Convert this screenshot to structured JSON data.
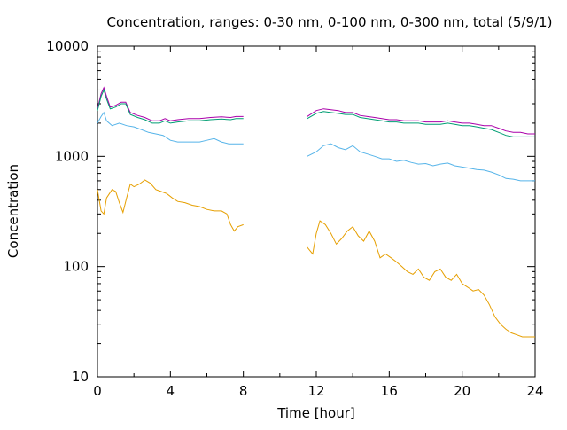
{
  "chart_data": {
    "type": "line",
    "title": "Concentration, ranges: 0-30 nm, 0-100 nm, 0-300 nm, total (5/9/1)",
    "xlabel": "Time [hour]",
    "ylabel": "Concentration",
    "xlim": [
      0,
      24
    ],
    "ylim": [
      10,
      10000
    ],
    "y_scale": "log",
    "grid": false,
    "legend": "none",
    "x_ticks": [
      "0",
      "4",
      "8",
      "12",
      "16",
      "20",
      "24"
    ],
    "x_tick_values": [
      0,
      4,
      8,
      12,
      16,
      20,
      24
    ],
    "y_ticks": [
      "10",
      "100",
      "1000",
      "10000"
    ],
    "y_tick_values": [
      10,
      100,
      1000,
      10000
    ],
    "series": [
      {
        "color": "#aa00aa",
        "segments": [
          [
            [
              0,
              2700
            ],
            [
              0.2,
              3700
            ],
            [
              0.35,
              4200
            ],
            [
              0.5,
              3500
            ],
            [
              0.7,
              2800
            ],
            [
              1.0,
              2900
            ],
            [
              1.3,
              3100
            ],
            [
              1.55,
              3100
            ],
            [
              1.8,
              2500
            ],
            [
              2.2,
              2350
            ],
            [
              2.6,
              2250
            ],
            [
              3.0,
              2100
            ],
            [
              3.4,
              2100
            ],
            [
              3.7,
              2200
            ],
            [
              4.0,
              2100
            ],
            [
              4.4,
              2150
            ],
            [
              5.0,
              2200
            ],
            [
              5.6,
              2200
            ],
            [
              6.2,
              2250
            ],
            [
              6.8,
              2280
            ],
            [
              7.3,
              2250
            ],
            [
              7.6,
              2300
            ],
            [
              8.0,
              2300
            ]
          ],
          [
            [
              11.5,
              2300
            ],
            [
              12.0,
              2600
            ],
            [
              12.4,
              2700
            ],
            [
              12.8,
              2650
            ],
            [
              13.2,
              2600
            ],
            [
              13.6,
              2500
            ],
            [
              14.0,
              2500
            ],
            [
              14.4,
              2350
            ],
            [
              14.8,
              2300
            ],
            [
              15.2,
              2250
            ],
            [
              15.6,
              2200
            ],
            [
              16.0,
              2150
            ],
            [
              16.4,
              2150
            ],
            [
              16.8,
              2100
            ],
            [
              17.2,
              2100
            ],
            [
              17.6,
              2100
            ],
            [
              18.0,
              2050
            ],
            [
              18.4,
              2050
            ],
            [
              18.8,
              2050
            ],
            [
              19.2,
              2100
            ],
            [
              19.6,
              2050
            ],
            [
              20.0,
              2000
            ],
            [
              20.4,
              2000
            ],
            [
              20.8,
              1950
            ],
            [
              21.2,
              1900
            ],
            [
              21.6,
              1900
            ],
            [
              22.0,
              1800
            ],
            [
              22.4,
              1700
            ],
            [
              22.8,
              1650
            ],
            [
              23.2,
              1650
            ],
            [
              23.6,
              1600
            ],
            [
              24.0,
              1600
            ]
          ]
        ]
      },
      {
        "color": "#009e73",
        "segments": [
          [
            [
              0,
              2600
            ],
            [
              0.2,
              3500
            ],
            [
              0.35,
              4000
            ],
            [
              0.5,
              3300
            ],
            [
              0.7,
              2700
            ],
            [
              1.0,
              2800
            ],
            [
              1.3,
              3000
            ],
            [
              1.55,
              3000
            ],
            [
              1.8,
              2400
            ],
            [
              2.2,
              2250
            ],
            [
              2.6,
              2150
            ],
            [
              3.0,
              2000
            ],
            [
              3.4,
              2000
            ],
            [
              3.7,
              2100
            ],
            [
              4.0,
              2000
            ],
            [
              4.4,
              2050
            ],
            [
              5.0,
              2100
            ],
            [
              5.6,
              2100
            ],
            [
              6.2,
              2150
            ],
            [
              6.8,
              2180
            ],
            [
              7.3,
              2150
            ],
            [
              7.6,
              2200
            ],
            [
              8.0,
              2200
            ]
          ],
          [
            [
              11.5,
              2200
            ],
            [
              12.0,
              2450
            ],
            [
              12.4,
              2550
            ],
            [
              12.8,
              2500
            ],
            [
              13.2,
              2450
            ],
            [
              13.6,
              2400
            ],
            [
              14.0,
              2400
            ],
            [
              14.4,
              2250
            ],
            [
              14.8,
              2200
            ],
            [
              15.2,
              2150
            ],
            [
              15.6,
              2100
            ],
            [
              16.0,
              2050
            ],
            [
              16.4,
              2050
            ],
            [
              16.8,
              2000
            ],
            [
              17.2,
              2000
            ],
            [
              17.6,
              2000
            ],
            [
              18.0,
              1950
            ],
            [
              18.4,
              1950
            ],
            [
              18.8,
              1950
            ],
            [
              19.2,
              2000
            ],
            [
              19.6,
              1950
            ],
            [
              20.0,
              1900
            ],
            [
              20.4,
              1900
            ],
            [
              20.8,
              1850
            ],
            [
              21.2,
              1800
            ],
            [
              21.6,
              1750
            ],
            [
              22.0,
              1650
            ],
            [
              22.4,
              1550
            ],
            [
              22.8,
              1500
            ],
            [
              23.2,
              1500
            ],
            [
              23.6,
              1500
            ],
            [
              24.0,
              1500
            ]
          ]
        ]
      },
      {
        "color": "#56b4e9",
        "segments": [
          [
            [
              0,
              2000
            ],
            [
              0.2,
              2300
            ],
            [
              0.35,
              2500
            ],
            [
              0.5,
              2100
            ],
            [
              0.8,
              1900
            ],
            [
              1.2,
              2000
            ],
            [
              1.6,
              1900
            ],
            [
              2.0,
              1850
            ],
            [
              2.4,
              1750
            ],
            [
              2.8,
              1650
            ],
            [
              3.2,
              1600
            ],
            [
              3.6,
              1550
            ],
            [
              4.0,
              1400
            ],
            [
              4.4,
              1350
            ],
            [
              5.0,
              1350
            ],
            [
              5.6,
              1350
            ],
            [
              6.0,
              1400
            ],
            [
              6.4,
              1450
            ],
            [
              6.8,
              1350
            ],
            [
              7.2,
              1300
            ],
            [
              7.6,
              1300
            ],
            [
              8.0,
              1300
            ]
          ],
          [
            [
              11.5,
              1000
            ],
            [
              12.0,
              1100
            ],
            [
              12.4,
              1250
            ],
            [
              12.8,
              1300
            ],
            [
              13.2,
              1200
            ],
            [
              13.6,
              1150
            ],
            [
              14.0,
              1250
            ],
            [
              14.4,
              1100
            ],
            [
              14.8,
              1050
            ],
            [
              15.2,
              1000
            ],
            [
              15.6,
              950
            ],
            [
              16.0,
              950
            ],
            [
              16.4,
              900
            ],
            [
              16.8,
              920
            ],
            [
              17.2,
              880
            ],
            [
              17.6,
              850
            ],
            [
              18.0,
              860
            ],
            [
              18.4,
              820
            ],
            [
              18.8,
              850
            ],
            [
              19.2,
              870
            ],
            [
              19.6,
              820
            ],
            [
              20.0,
              800
            ],
            [
              20.4,
              780
            ],
            [
              20.8,
              760
            ],
            [
              21.2,
              750
            ],
            [
              21.6,
              720
            ],
            [
              22.0,
              680
            ],
            [
              22.4,
              630
            ],
            [
              22.8,
              620
            ],
            [
              23.2,
              600
            ],
            [
              23.6,
              600
            ],
            [
              24.0,
              600
            ]
          ]
        ]
      },
      {
        "color": "#e69f00",
        "segments": [
          [
            [
              0,
              500
            ],
            [
              0.2,
              320
            ],
            [
              0.35,
              300
            ],
            [
              0.5,
              420
            ],
            [
              0.8,
              500
            ],
            [
              1.0,
              480
            ],
            [
              1.2,
              380
            ],
            [
              1.4,
              310
            ],
            [
              1.6,
              420
            ],
            [
              1.8,
              560
            ],
            [
              2.0,
              530
            ],
            [
              2.3,
              560
            ],
            [
              2.6,
              610
            ],
            [
              2.9,
              570
            ],
            [
              3.2,
              500
            ],
            [
              3.5,
              480
            ],
            [
              3.8,
              460
            ],
            [
              4.1,
              420
            ],
            [
              4.4,
              390
            ],
            [
              4.8,
              380
            ],
            [
              5.2,
              360
            ],
            [
              5.6,
              350
            ],
            [
              6.0,
              330
            ],
            [
              6.4,
              320
            ],
            [
              6.8,
              320
            ],
            [
              7.1,
              300
            ],
            [
              7.3,
              240
            ],
            [
              7.5,
              210
            ],
            [
              7.7,
              230
            ],
            [
              8.0,
              240
            ]
          ],
          [
            [
              11.5,
              150
            ],
            [
              11.8,
              130
            ],
            [
              12.0,
              200
            ],
            [
              12.2,
              260
            ],
            [
              12.5,
              240
            ],
            [
              12.8,
              200
            ],
            [
              13.1,
              160
            ],
            [
              13.4,
              180
            ],
            [
              13.7,
              210
            ],
            [
              14.0,
              230
            ],
            [
              14.3,
              190
            ],
            [
              14.6,
              170
            ],
            [
              14.9,
              210
            ],
            [
              15.2,
              170
            ],
            [
              15.5,
              120
            ],
            [
              15.8,
              130
            ],
            [
              16.1,
              120
            ],
            [
              16.4,
              110
            ],
            [
              16.7,
              100
            ],
            [
              17.0,
              90
            ],
            [
              17.3,
              85
            ],
            [
              17.6,
              95
            ],
            [
              17.9,
              80
            ],
            [
              18.2,
              75
            ],
            [
              18.5,
              90
            ],
            [
              18.8,
              95
            ],
            [
              19.1,
              80
            ],
            [
              19.4,
              75
            ],
            [
              19.7,
              85
            ],
            [
              20.0,
              70
            ],
            [
              20.3,
              65
            ],
            [
              20.6,
              60
            ],
            [
              20.9,
              62
            ],
            [
              21.2,
              55
            ],
            [
              21.5,
              45
            ],
            [
              21.8,
              35
            ],
            [
              22.1,
              30
            ],
            [
              22.4,
              27
            ],
            [
              22.7,
              25
            ],
            [
              23.0,
              24
            ],
            [
              23.3,
              23
            ],
            [
              23.6,
              23
            ],
            [
              24.0,
              23
            ]
          ]
        ]
      }
    ]
  }
}
